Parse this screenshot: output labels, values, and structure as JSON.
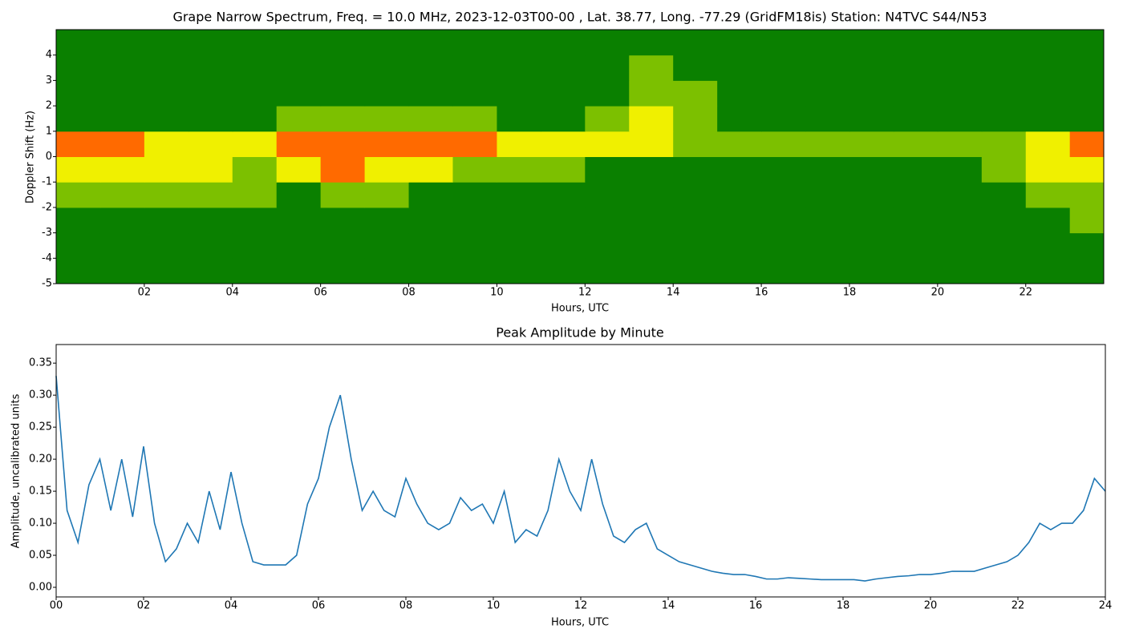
{
  "chart_data": [
    {
      "type": "heatmap",
      "title": "Grape Narrow Spectrum, Freq. = 10.0 MHz, 2023-12-03T00-00 , Lat.  38.77, Long. -77.29 (GridFM18is) Station: N4TVC S44/N53",
      "xlabel": "Hours, UTC",
      "ylabel": "Doppler Shift (Hz)",
      "xlim": [
        0,
        23.77
      ],
      "ylim": [
        -5,
        5
      ],
      "xticks": [
        {
          "value": 2,
          "label": "02"
        },
        {
          "value": 4,
          "label": "04"
        },
        {
          "value": 6,
          "label": "06"
        },
        {
          "value": 8,
          "label": "08"
        },
        {
          "value": 10,
          "label": "10"
        },
        {
          "value": 12,
          "label": "12"
        },
        {
          "value": 14,
          "label": "14"
        },
        {
          "value": 16,
          "label": "16"
        },
        {
          "value": 18,
          "label": "18"
        },
        {
          "value": 20,
          "label": "20"
        },
        {
          "value": 22,
          "label": "22"
        }
      ],
      "yticks": [
        -5,
        -4,
        -3,
        -2,
        -1,
        0,
        1,
        2,
        3,
        4
      ],
      "xbins": [
        0,
        1,
        2,
        3,
        4,
        5,
        6,
        7,
        8,
        9,
        10,
        11,
        12,
        13,
        14,
        15,
        16,
        17,
        18,
        19,
        20,
        21,
        22,
        23,
        23.77
      ],
      "ybins": [
        -5,
        -4,
        -3,
        -2,
        -1,
        0,
        1,
        2,
        3,
        4,
        5
      ],
      "colors": [
        "#0a8000",
        "#7cc000",
        "#f0f000",
        "#ff6a00"
      ],
      "values": [
        [
          0,
          0,
          0,
          0,
          0,
          0,
          0,
          0,
          0,
          0,
          0,
          0,
          0,
          0,
          0,
          0,
          0,
          0,
          0,
          0,
          0,
          0,
          0,
          0
        ],
        [
          0,
          0,
          0,
          0,
          0,
          0,
          0,
          0,
          0,
          0,
          0,
          0,
          0,
          0,
          0,
          0,
          0,
          0,
          0,
          0,
          0,
          0,
          0,
          0
        ],
        [
          0,
          0,
          0,
          0,
          0,
          0,
          0,
          0,
          0,
          0,
          0,
          0,
          0,
          0,
          0,
          0,
          0,
          0,
          0,
          0,
          0,
          0,
          0,
          1
        ],
        [
          1,
          1,
          1,
          1,
          1,
          0,
          1,
          1,
          0,
          0,
          0,
          0,
          0,
          0,
          0,
          0,
          0,
          0,
          0,
          0,
          0,
          0,
          1,
          1
        ],
        [
          2,
          2,
          2,
          2,
          1,
          2,
          3,
          2,
          2,
          1,
          1,
          1,
          0,
          0,
          0,
          0,
          0,
          0,
          0,
          0,
          0,
          1,
          2,
          2
        ],
        [
          3,
          3,
          2,
          2,
          2,
          3,
          3,
          3,
          3,
          3,
          2,
          2,
          2,
          2,
          1,
          1,
          1,
          1,
          1,
          1,
          1,
          1,
          2,
          3
        ],
        [
          0,
          0,
          0,
          0,
          0,
          1,
          1,
          1,
          1,
          1,
          0,
          0,
          1,
          2,
          1,
          0,
          0,
          0,
          0,
          0,
          0,
          0,
          0,
          0
        ],
        [
          0,
          0,
          0,
          0,
          0,
          0,
          0,
          0,
          0,
          0,
          0,
          0,
          0,
          1,
          1,
          0,
          0,
          0,
          0,
          0,
          0,
          0,
          0,
          0
        ],
        [
          0,
          0,
          0,
          0,
          0,
          0,
          0,
          0,
          0,
          0,
          0,
          0,
          0,
          1,
          0,
          0,
          0,
          0,
          0,
          0,
          0,
          0,
          0,
          0
        ],
        [
          0,
          0,
          0,
          0,
          0,
          0,
          0,
          0,
          0,
          0,
          0,
          0,
          0,
          0,
          0,
          0,
          0,
          0,
          0,
          0,
          0,
          0,
          0,
          0
        ]
      ]
    },
    {
      "type": "line",
      "title": "Peak Amplitude by Minute",
      "xlabel": "Hours, UTC",
      "ylabel": "Amplitude, uncalibrated units",
      "color": "#1f77b4",
      "xlim": [
        0,
        24
      ],
      "ylim": [
        -0.015,
        0.379
      ],
      "xticks": [
        {
          "value": 0,
          "label": "00"
        },
        {
          "value": 2,
          "label": "02"
        },
        {
          "value": 4,
          "label": "04"
        },
        {
          "value": 6,
          "label": "06"
        },
        {
          "value": 8,
          "label": "08"
        },
        {
          "value": 10,
          "label": "10"
        },
        {
          "value": 12,
          "label": "12"
        },
        {
          "value": 14,
          "label": "14"
        },
        {
          "value": 16,
          "label": "16"
        },
        {
          "value": 18,
          "label": "18"
        },
        {
          "value": 20,
          "label": "20"
        },
        {
          "value": 22,
          "label": "22"
        },
        {
          "value": 24,
          "label": "24"
        }
      ],
      "yticks": [
        {
          "value": 0,
          "label": "0.00"
        },
        {
          "value": 0.05,
          "label": "0.05"
        },
        {
          "value": 0.1,
          "label": "0.10"
        },
        {
          "value": 0.15,
          "label": "0.15"
        },
        {
          "value": 0.2,
          "label": "0.20"
        },
        {
          "value": 0.25,
          "label": "0.25"
        },
        {
          "value": 0.3,
          "label": "0.30"
        },
        {
          "value": 0.35,
          "label": "0.35"
        }
      ],
      "x": [
        0,
        0.25,
        0.5,
        0.75,
        1,
        1.25,
        1.5,
        1.75,
        2,
        2.25,
        2.5,
        2.75,
        3,
        3.25,
        3.5,
        3.75,
        4,
        4.25,
        4.5,
        4.75,
        5,
        5.25,
        5.5,
        5.75,
        6,
        6.25,
        6.5,
        6.75,
        7,
        7.25,
        7.5,
        7.75,
        8,
        8.25,
        8.5,
        8.75,
        9,
        9.25,
        9.5,
        9.75,
        10,
        10.25,
        10.5,
        10.75,
        11,
        11.25,
        11.5,
        11.75,
        12,
        12.25,
        12.5,
        12.75,
        13,
        13.25,
        13.5,
        13.75,
        14,
        14.25,
        14.5,
        14.75,
        15,
        15.25,
        15.5,
        15.75,
        16,
        16.25,
        16.5,
        16.75,
        17,
        17.25,
        17.5,
        17.75,
        18,
        18.25,
        18.5,
        18.75,
        19,
        19.25,
        19.5,
        19.75,
        20,
        20.25,
        20.5,
        20.75,
        21,
        21.25,
        21.5,
        21.75,
        22,
        22.25,
        22.5,
        22.75,
        23,
        23.25,
        23.5,
        23.75,
        24
      ],
      "values": [
        0.33,
        0.12,
        0.07,
        0.16,
        0.2,
        0.12,
        0.2,
        0.11,
        0.22,
        0.1,
        0.04,
        0.06,
        0.1,
        0.07,
        0.15,
        0.09,
        0.18,
        0.1,
        0.04,
        0.035,
        0.035,
        0.035,
        0.05,
        0.13,
        0.17,
        0.25,
        0.3,
        0.2,
        0.12,
        0.15,
        0.12,
        0.11,
        0.17,
        0.13,
        0.1,
        0.09,
        0.1,
        0.14,
        0.12,
        0.13,
        0.1,
        0.15,
        0.07,
        0.09,
        0.08,
        0.12,
        0.2,
        0.15,
        0.12,
        0.2,
        0.13,
        0.08,
        0.07,
        0.09,
        0.1,
        0.06,
        0.05,
        0.04,
        0.035,
        0.03,
        0.025,
        0.022,
        0.02,
        0.02,
        0.017,
        0.013,
        0.013,
        0.015,
        0.014,
        0.013,
        0.012,
        0.012,
        0.012,
        0.012,
        0.01,
        0.013,
        0.015,
        0.017,
        0.018,
        0.02,
        0.02,
        0.022,
        0.025,
        0.025,
        0.025,
        0.03,
        0.035,
        0.04,
        0.05,
        0.07,
        0.1,
        0.09,
        0.1,
        0.1,
        0.12,
        0.17,
        0.15
      ]
    }
  ]
}
